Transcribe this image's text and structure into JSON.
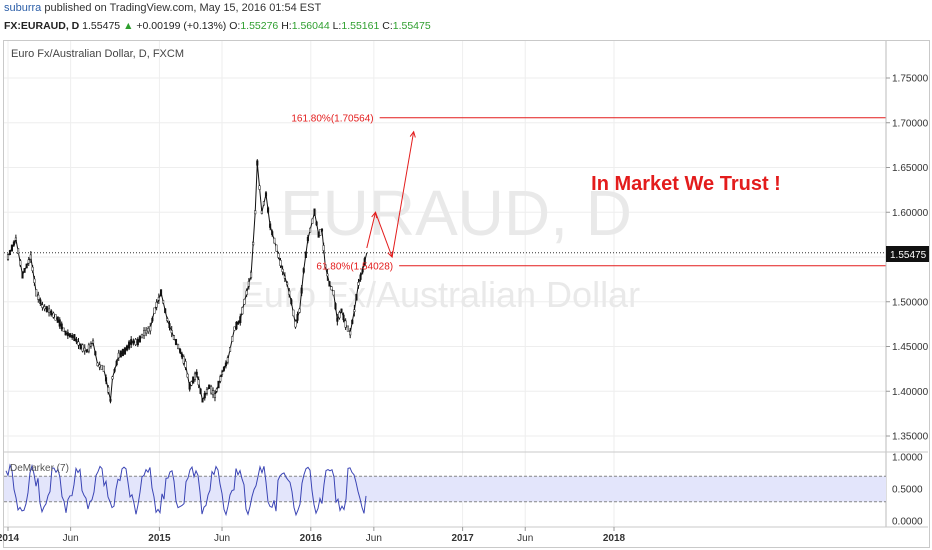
{
  "header": {
    "author": "suburra",
    "published_text": "published on TradingView.com, May 15, 2016 01:54 EST",
    "symbol": "FX:EURAUD, D",
    "last": "1.55475",
    "change_arrow": "▲",
    "change": "+0.00199 (+0.13%)",
    "o_label": "O:",
    "o_value": "1.55276",
    "h_label": "H:",
    "h_value": "1.56044",
    "l_label": "L:",
    "l_value": "1.55161",
    "c_label": "C:",
    "c_value": "1.55475"
  },
  "chart": {
    "pane_title": "Euro Fx/Australian Dollar, D, FXCM",
    "watermark_symbol": "EURAUD, D",
    "watermark_name": "Euro Fx/Australian Dollar",
    "annotation_title": "In Market We Trust !",
    "fib_upper_label": "161.80%(1.70564)",
    "fib_lower_label": "61.80%(1.54028)",
    "price_tag": "1.55475",
    "indicator_label": "DeMarker (7)",
    "colors": {
      "candles": "#111111",
      "annotation": "#e31c1c",
      "oscillator": "#3b45b5",
      "band_fill": "#e3e5fb",
      "grid": "#eeeeee"
    }
  },
  "chart_data": {
    "type": "line",
    "title": "Euro Fx/Australian Dollar, D, FXCM",
    "x_tick_labels": [
      "2014",
      "Jun",
      "2015",
      "Jun",
      "2016",
      "Jun",
      "2017",
      "Jun",
      "2018"
    ],
    "y_tick_labels": [
      "1.75000",
      "1.70000",
      "1.65000",
      "1.60000",
      "1.55000",
      "1.50000",
      "1.45000",
      "1.40000",
      "1.35000"
    ],
    "ylim": [
      1.34,
      1.78
    ],
    "last_price": 1.55475,
    "price_series": [
      [
        "2014-01-01",
        1.55
      ],
      [
        "2014-01-20",
        1.57
      ],
      [
        "2014-02-05",
        1.53
      ],
      [
        "2014-02-25",
        1.55
      ],
      [
        "2014-03-10",
        1.51
      ],
      [
        "2014-03-25",
        1.495
      ],
      [
        "2014-04-10",
        1.49
      ],
      [
        "2014-05-01",
        1.48
      ],
      [
        "2014-05-20",
        1.465
      ],
      [
        "2014-06-10",
        1.46
      ],
      [
        "2014-06-25",
        1.45
      ],
      [
        "2014-07-10",
        1.445
      ],
      [
        "2014-07-25",
        1.455
      ],
      [
        "2014-08-05",
        1.43
      ],
      [
        "2014-08-20",
        1.425
      ],
      [
        "2014-09-05",
        1.39
      ],
      [
        "2014-09-10",
        1.415
      ],
      [
        "2014-09-25",
        1.44
      ],
      [
        "2014-10-10",
        1.445
      ],
      [
        "2014-10-25",
        1.455
      ],
      [
        "2014-11-10",
        1.455
      ],
      [
        "2014-11-25",
        1.465
      ],
      [
        "2014-12-10",
        1.47
      ],
      [
        "2014-12-20",
        1.49
      ],
      [
        "2015-01-05",
        1.51
      ],
      [
        "2015-01-20",
        1.48
      ],
      [
        "2015-02-05",
        1.46
      ],
      [
        "2015-02-20",
        1.445
      ],
      [
        "2015-03-05",
        1.43
      ],
      [
        "2015-03-15",
        1.405
      ],
      [
        "2015-04-01",
        1.42
      ],
      [
        "2015-04-15",
        1.39
      ],
      [
        "2015-05-01",
        1.405
      ],
      [
        "2015-05-15",
        1.395
      ],
      [
        "2015-06-01",
        1.42
      ],
      [
        "2015-06-15",
        1.435
      ],
      [
        "2015-07-01",
        1.47
      ],
      [
        "2015-07-15",
        1.48
      ],
      [
        "2015-07-25",
        1.5
      ],
      [
        "2015-08-10",
        1.53
      ],
      [
        "2015-08-20",
        1.6
      ],
      [
        "2015-08-25",
        1.655
      ],
      [
        "2015-09-05",
        1.6
      ],
      [
        "2015-09-15",
        1.62
      ],
      [
        "2015-09-25",
        1.585
      ],
      [
        "2015-10-10",
        1.56
      ],
      [
        "2015-10-25",
        1.535
      ],
      [
        "2015-11-05",
        1.52
      ],
      [
        "2015-11-15",
        1.5
      ],
      [
        "2015-11-25",
        1.475
      ],
      [
        "2015-12-05",
        1.49
      ],
      [
        "2015-12-15",
        1.535
      ],
      [
        "2015-12-25",
        1.57
      ],
      [
        "2016-01-10",
        1.6
      ],
      [
        "2016-01-20",
        1.575
      ],
      [
        "2016-01-28",
        1.58
      ],
      [
        "2016-02-05",
        1.54
      ],
      [
        "2016-02-15",
        1.52
      ],
      [
        "2016-02-25",
        1.51
      ],
      [
        "2016-03-05",
        1.48
      ],
      [
        "2016-03-15",
        1.49
      ],
      [
        "2016-03-25",
        1.475
      ],
      [
        "2016-04-05",
        1.465
      ],
      [
        "2016-04-15",
        1.49
      ],
      [
        "2016-04-25",
        1.52
      ],
      [
        "2016-05-05",
        1.535
      ],
      [
        "2016-05-15",
        1.55475
      ]
    ],
    "projection": [
      [
        "2016-05-15",
        1.56
      ],
      [
        "2016-06-05",
        1.6
      ],
      [
        "2016-07-15",
        1.55
      ],
      [
        "2016-09-05",
        1.69
      ]
    ],
    "fib_levels": [
      {
        "label": "161.80%(1.70564)",
        "value": 1.70564
      },
      {
        "label": "61.80%(1.54028)",
        "value": 1.54028
      }
    ],
    "indicator": {
      "name": "DeMarker (7)",
      "y_tick_labels": [
        "1.0000",
        "0.5000",
        "0.0000"
      ],
      "ylim": [
        0,
        1
      ],
      "band": [
        0.3,
        0.7
      ]
    },
    "grid": true
  }
}
